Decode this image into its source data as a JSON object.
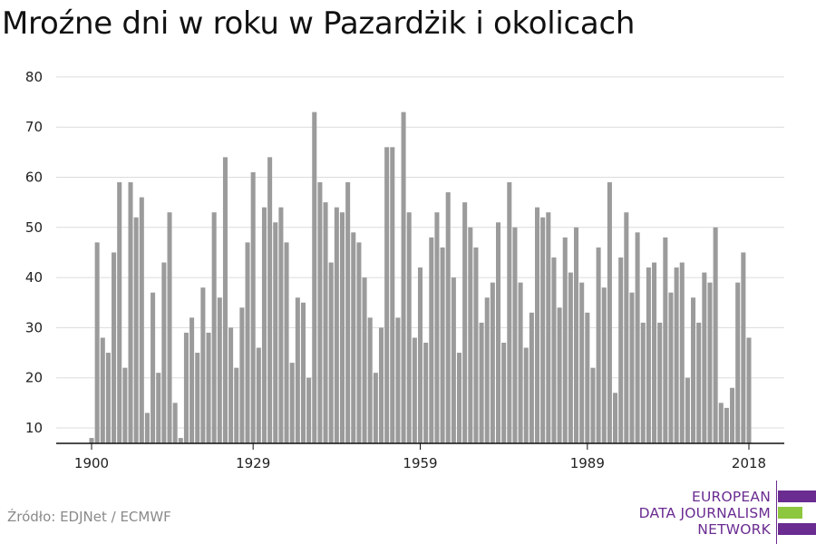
{
  "title": "Mroźne dni w roku w Pazardżik i okolicach",
  "source": "Źródło: EDJNet / ECMWF",
  "logo": {
    "lines": [
      "EUROPEAN",
      "DATA JOURNALISM",
      "NETWORK"
    ],
    "colors": {
      "purple": "#6a2c91",
      "green": "#8dc63f"
    }
  },
  "chart_data": {
    "type": "bar",
    "title": "Mroźne dni w roku w Pazardżik i okolicach",
    "xlabel": "",
    "ylabel": "",
    "x_start": 1900,
    "x_end": 2018,
    "x_ticks": [
      "1900",
      "1929",
      "1959",
      "1989",
      "2018"
    ],
    "y_ticks": [
      10,
      20,
      30,
      40,
      50,
      60,
      70,
      80
    ],
    "ylim": [
      7,
      80
    ],
    "grid": true,
    "bar_color": "#9b9b9b",
    "values": [
      8,
      47,
      28,
      25,
      45,
      59,
      22,
      59,
      52,
      56,
      13,
      37,
      21,
      43,
      53,
      15,
      8,
      29,
      32,
      25,
      38,
      29,
      53,
      36,
      64,
      30,
      22,
      34,
      47,
      61,
      26,
      54,
      64,
      51,
      54,
      47,
      23,
      36,
      35,
      20,
      73,
      59,
      55,
      43,
      54,
      53,
      59,
      49,
      47,
      40,
      32,
      21,
      30,
      66,
      66,
      32,
      73,
      53,
      28,
      42,
      27,
      48,
      53,
      46,
      57,
      40,
      25,
      55,
      50,
      46,
      31,
      36,
      39,
      51,
      27,
      59,
      50,
      39,
      26,
      33,
      54,
      52,
      53,
      44,
      34,
      48,
      41,
      50,
      39,
      33,
      22,
      46,
      38,
      59,
      17,
      44,
      53,
      37,
      49,
      31,
      42,
      43,
      31,
      48,
      37,
      42,
      43,
      20,
      36,
      31,
      41,
      39,
      50,
      15,
      14,
      18,
      39,
      45,
      28
    ]
  }
}
